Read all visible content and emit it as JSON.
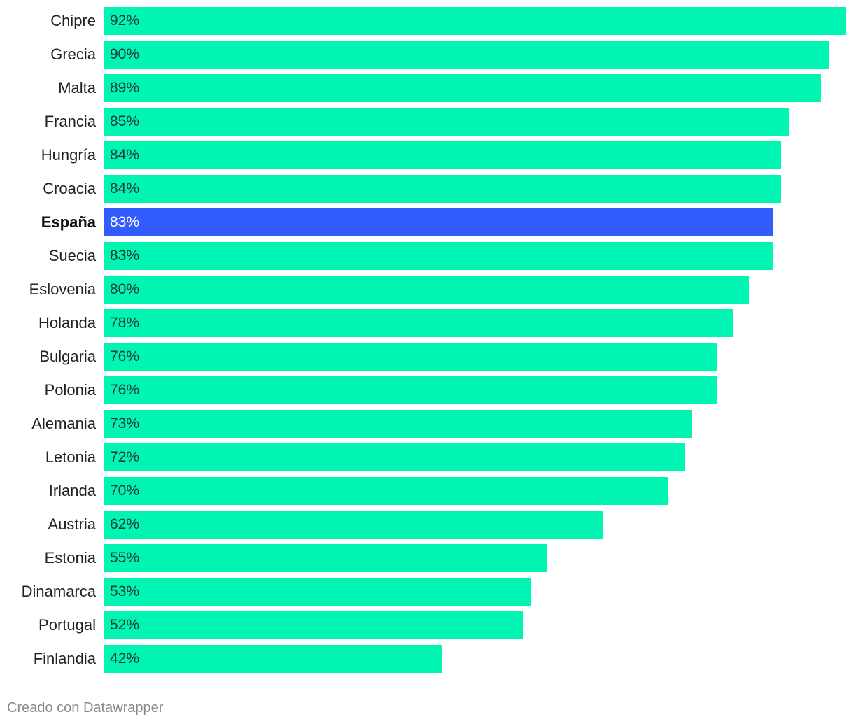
{
  "chart_data": {
    "type": "bar",
    "orientation": "horizontal",
    "categories": [
      "Chipre",
      "Grecia",
      "Malta",
      "Francia",
      "Hungría",
      "Croacia",
      "España",
      "Suecia",
      "Eslovenia",
      "Holanda",
      "Bulgaria",
      "Polonia",
      "Alemania",
      "Letonia",
      "Irlanda",
      "Austria",
      "Estonia",
      "Dinamarca",
      "Portugal",
      "Finlandia"
    ],
    "values": [
      92,
      90,
      89,
      85,
      84,
      84,
      83,
      83,
      80,
      78,
      76,
      76,
      73,
      72,
      70,
      62,
      55,
      53,
      52,
      42
    ],
    "value_suffix": "%",
    "highlight": "España",
    "xlim": [
      0,
      92
    ],
    "grid": false,
    "colors": {
      "bar": "#00f5b2",
      "highlight": "#335cff"
    }
  },
  "footer": {
    "credit": "Creado con Datawrapper"
  }
}
